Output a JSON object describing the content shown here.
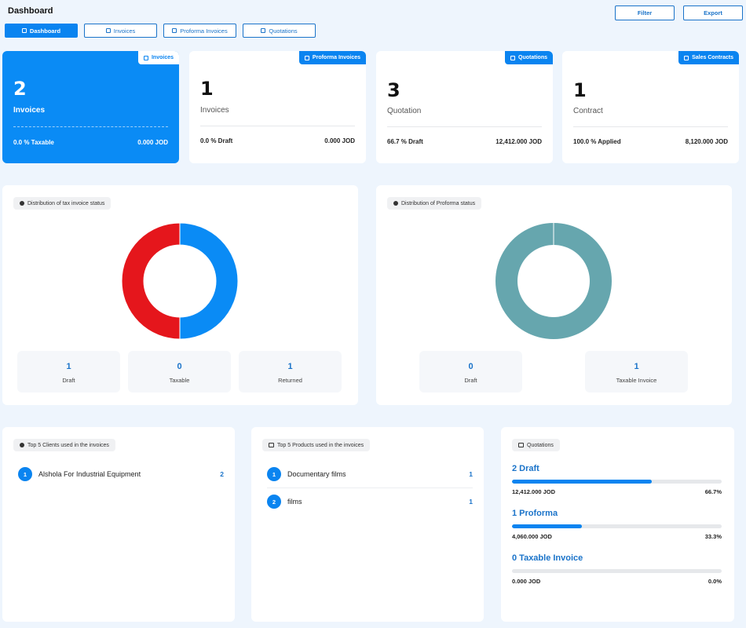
{
  "header": {
    "title": "Dashboard",
    "filter_label": "Filter",
    "export_label": "Export",
    "tabs": [
      {
        "label": "Dashboard",
        "active": true
      },
      {
        "label": "Invoices",
        "active": false
      },
      {
        "label": "Proforma Invoices",
        "active": false
      },
      {
        "label": "Quotations",
        "active": false
      }
    ]
  },
  "cards": [
    {
      "badge": "Invoices",
      "value": "2",
      "label": "Invoices",
      "foot_left": "0.0 % Taxable",
      "foot_right": "0.000 JOD"
    },
    {
      "badge": "Proforma Invoices",
      "value": "1",
      "label": "Invoices",
      "foot_left": "0.0 % Draft",
      "foot_right": "0.000 JOD"
    },
    {
      "badge": "Quotations",
      "value": "3",
      "label": "Quotation",
      "foot_left": "66.7 % Draft",
      "foot_right": "12,412.000 JOD"
    },
    {
      "badge": "Sales Contracts",
      "value": "1",
      "label": "Contract",
      "foot_left": "100.0 % Applied",
      "foot_right": "8,120.000 JOD"
    }
  ],
  "tax_status": {
    "title": "Distribution of tax invoice status",
    "metrics": [
      {
        "value": "1",
        "label": "Draft"
      },
      {
        "value": "0",
        "label": "Taxable"
      },
      {
        "value": "1",
        "label": "Returned"
      }
    ]
  },
  "proforma_status": {
    "title": "Distribution of Proforma status",
    "metrics": [
      {
        "value": "0",
        "label": "Draft"
      },
      {
        "value": "1",
        "label": "Taxable Invoice"
      }
    ]
  },
  "chart_data": [
    {
      "type": "pie",
      "categories": [
        "Draft",
        "Returned"
      ],
      "values": [
        1,
        1
      ],
      "colors": [
        "#0a8bf5",
        "#e5161c"
      ],
      "donut": true
    },
    {
      "type": "pie",
      "categories": [
        "Taxable Invoice"
      ],
      "values": [
        1
      ],
      "colors": [
        "#66a6ae"
      ],
      "donut": true
    }
  ],
  "top_clients": {
    "title": "Top 5 Clients used in the invoices",
    "items": [
      {
        "rank": "1",
        "name": "Alshola For Industrial Equipment",
        "count": "2"
      }
    ]
  },
  "top_products": {
    "title": "Top 5 Products used in the invoices",
    "items": [
      {
        "rank": "1",
        "name": "Documentary films",
        "count": "1"
      },
      {
        "rank": "2",
        "name": "films",
        "count": "1"
      }
    ]
  },
  "quotations": {
    "title": "Quotations",
    "items": [
      {
        "title": "2 Draft",
        "amount": "12,412.000 JOD",
        "percent": "66.7%",
        "fraction": 0.667
      },
      {
        "title": "1 Proforma",
        "amount": "4,060.000 JOD",
        "percent": "33.3%",
        "fraction": 0.333
      },
      {
        "title": "0 Taxable Invoice",
        "amount": "0.000 JOD",
        "percent": "0.0%",
        "fraction": 0.0
      }
    ]
  }
}
